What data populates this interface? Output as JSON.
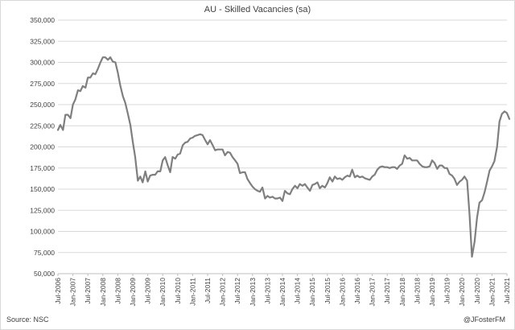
{
  "chart_data": {
    "type": "line",
    "title": "AU - Skilled Vacancies (sa)",
    "xlabel": "",
    "ylabel": "",
    "ylim": [
      50000,
      350000
    ],
    "yticks": [
      "50,000",
      "75,000",
      "100,000",
      "125,000",
      "150,000",
      "175,000",
      "200,000",
      "225,000",
      "250,000",
      "275,000",
      "300,000",
      "325,000",
      "350,000"
    ],
    "xticks": [
      "Jul-2006",
      "Jan-2007",
      "Jul-2007",
      "Jan-2008",
      "Jul-2008",
      "Jan-2009",
      "Jul-2009",
      "Jan-2010",
      "Jul-2010",
      "Jan-2011",
      "Jul-2011",
      "Jan-2012",
      "Jul-2012",
      "Jan-2013",
      "Jul-2013",
      "Jan-2014",
      "Jul-2014",
      "Jan-2015",
      "Jul-2015",
      "Jan-2016",
      "Jul-2016",
      "Jan-2017",
      "Jul-2017",
      "Jan-2018",
      "Jul-2018",
      "Jan-2019",
      "Jul-2019",
      "Jan-2020",
      "Jul-2020",
      "Jan-2021",
      "Jul-2021"
    ],
    "grid": true,
    "line_color": "#7f7f7f",
    "series": [
      {
        "values": [
          [
            2006.5,
            220000
          ],
          [
            2006.58,
            226000
          ],
          [
            2006.67,
            220000
          ],
          [
            2006.75,
            238000
          ],
          [
            2006.83,
            238000
          ],
          [
            2006.92,
            234000
          ],
          [
            2007.0,
            250000
          ],
          [
            2007.08,
            256000
          ],
          [
            2007.17,
            267000
          ],
          [
            2007.25,
            266000
          ],
          [
            2007.33,
            272000
          ],
          [
            2007.42,
            270000
          ],
          [
            2007.5,
            282000
          ],
          [
            2007.58,
            282000
          ],
          [
            2007.67,
            287000
          ],
          [
            2007.75,
            286000
          ],
          [
            2007.83,
            292000
          ],
          [
            2007.92,
            300000
          ],
          [
            2008.0,
            306000
          ],
          [
            2008.08,
            306000
          ],
          [
            2008.17,
            303000
          ],
          [
            2008.25,
            306000
          ],
          [
            2008.33,
            301000
          ],
          [
            2008.42,
            300000
          ],
          [
            2008.5,
            288000
          ],
          [
            2008.58,
            273000
          ],
          [
            2008.67,
            260000
          ],
          [
            2008.75,
            252000
          ],
          [
            2008.83,
            240000
          ],
          [
            2008.92,
            226000
          ],
          [
            2009.0,
            206000
          ],
          [
            2009.08,
            188000
          ],
          [
            2009.17,
            160000
          ],
          [
            2009.25,
            165000
          ],
          [
            2009.33,
            158000
          ],
          [
            2009.42,
            171000
          ],
          [
            2009.5,
            159000
          ],
          [
            2009.58,
            166000
          ],
          [
            2009.67,
            167000
          ],
          [
            2009.75,
            167000
          ],
          [
            2009.83,
            171000
          ],
          [
            2009.92,
            171000
          ],
          [
            2010.0,
            184000
          ],
          [
            2010.08,
            188000
          ],
          [
            2010.17,
            178000
          ],
          [
            2010.25,
            170000
          ],
          [
            2010.33,
            188000
          ],
          [
            2010.42,
            186000
          ],
          [
            2010.5,
            191000
          ],
          [
            2010.58,
            192000
          ],
          [
            2010.67,
            202000
          ],
          [
            2010.75,
            205000
          ],
          [
            2010.83,
            206000
          ],
          [
            2010.92,
            210000
          ],
          [
            2011.0,
            211000
          ],
          [
            2011.08,
            213000
          ],
          [
            2011.17,
            214000
          ],
          [
            2011.25,
            215000
          ],
          [
            2011.33,
            214000
          ],
          [
            2011.42,
            208000
          ],
          [
            2011.5,
            203000
          ],
          [
            2011.58,
            208000
          ],
          [
            2011.67,
            202000
          ],
          [
            2011.75,
            196000
          ],
          [
            2011.83,
            197000
          ],
          [
            2011.92,
            197000
          ],
          [
            2012.0,
            197000
          ],
          [
            2012.08,
            190000
          ],
          [
            2012.17,
            194000
          ],
          [
            2012.25,
            193000
          ],
          [
            2012.33,
            188000
          ],
          [
            2012.42,
            184000
          ],
          [
            2012.5,
            180000
          ],
          [
            2012.58,
            169000
          ],
          [
            2012.67,
            170000
          ],
          [
            2012.75,
            170000
          ],
          [
            2012.83,
            162000
          ],
          [
            2012.92,
            157000
          ],
          [
            2013.0,
            153000
          ],
          [
            2013.08,
            150000
          ],
          [
            2013.17,
            148000
          ],
          [
            2013.25,
            147000
          ],
          [
            2013.33,
            152000
          ],
          [
            2013.42,
            139000
          ],
          [
            2013.5,
            142000
          ],
          [
            2013.58,
            140000
          ],
          [
            2013.67,
            141000
          ],
          [
            2013.75,
            139000
          ],
          [
            2013.83,
            139000
          ],
          [
            2013.92,
            140000
          ],
          [
            2014.0,
            136000
          ],
          [
            2014.08,
            148000
          ],
          [
            2014.17,
            145000
          ],
          [
            2014.25,
            144000
          ],
          [
            2014.33,
            150000
          ],
          [
            2014.42,
            154000
          ],
          [
            2014.5,
            151000
          ],
          [
            2014.58,
            156000
          ],
          [
            2014.67,
            154000
          ],
          [
            2014.75,
            156000
          ],
          [
            2014.83,
            152000
          ],
          [
            2014.92,
            148000
          ],
          [
            2015.0,
            155000
          ],
          [
            2015.08,
            156000
          ],
          [
            2015.17,
            158000
          ],
          [
            2015.25,
            151000
          ],
          [
            2015.33,
            154000
          ],
          [
            2015.42,
            152000
          ],
          [
            2015.5,
            157000
          ],
          [
            2015.58,
            164000
          ],
          [
            2015.67,
            159000
          ],
          [
            2015.75,
            165000
          ],
          [
            2015.83,
            162000
          ],
          [
            2015.92,
            163000
          ],
          [
            2016.0,
            161000
          ],
          [
            2016.08,
            164000
          ],
          [
            2016.17,
            166000
          ],
          [
            2016.25,
            165000
          ],
          [
            2016.33,
            173000
          ],
          [
            2016.42,
            164000
          ],
          [
            2016.5,
            166000
          ],
          [
            2016.58,
            164000
          ],
          [
            2016.67,
            165000
          ],
          [
            2016.75,
            163000
          ],
          [
            2016.83,
            162000
          ],
          [
            2016.92,
            161000
          ],
          [
            2017.0,
            165000
          ],
          [
            2017.08,
            167000
          ],
          [
            2017.17,
            173000
          ],
          [
            2017.25,
            176000
          ],
          [
            2017.33,
            177000
          ],
          [
            2017.42,
            176000
          ],
          [
            2017.5,
            176000
          ],
          [
            2017.58,
            175000
          ],
          [
            2017.67,
            176000
          ],
          [
            2017.75,
            176000
          ],
          [
            2017.83,
            174000
          ],
          [
            2017.92,
            178000
          ],
          [
            2018.0,
            180000
          ],
          [
            2018.08,
            190000
          ],
          [
            2018.17,
            186000
          ],
          [
            2018.25,
            187000
          ],
          [
            2018.33,
            184000
          ],
          [
            2018.42,
            184000
          ],
          [
            2018.5,
            184000
          ],
          [
            2018.58,
            180000
          ],
          [
            2018.67,
            177000
          ],
          [
            2018.75,
            176000
          ],
          [
            2018.83,
            176000
          ],
          [
            2018.92,
            177000
          ],
          [
            2019.0,
            184000
          ],
          [
            2019.08,
            181000
          ],
          [
            2019.17,
            174000
          ],
          [
            2019.25,
            178000
          ],
          [
            2019.33,
            178000
          ],
          [
            2019.42,
            175000
          ],
          [
            2019.5,
            175000
          ],
          [
            2019.58,
            168000
          ],
          [
            2019.67,
            166000
          ],
          [
            2019.75,
            162000
          ],
          [
            2019.83,
            155000
          ],
          [
            2019.92,
            159000
          ],
          [
            2020.0,
            161000
          ],
          [
            2020.08,
            165000
          ],
          [
            2020.17,
            160000
          ],
          [
            2020.25,
            120000
          ],
          [
            2020.33,
            70000
          ],
          [
            2020.42,
            88000
          ],
          [
            2020.5,
            116000
          ],
          [
            2020.58,
            134000
          ],
          [
            2020.67,
            137000
          ],
          [
            2020.75,
            146000
          ],
          [
            2020.83,
            158000
          ],
          [
            2020.92,
            172000
          ],
          [
            2021.0,
            177000
          ],
          [
            2021.08,
            183000
          ],
          [
            2021.17,
            200000
          ],
          [
            2021.25,
            230000
          ],
          [
            2021.33,
            239000
          ],
          [
            2021.42,
            242000
          ],
          [
            2021.5,
            240000
          ],
          [
            2021.58,
            233000
          ]
        ]
      }
    ],
    "source": "Source: NSC",
    "credit": "@JFosterFM"
  }
}
